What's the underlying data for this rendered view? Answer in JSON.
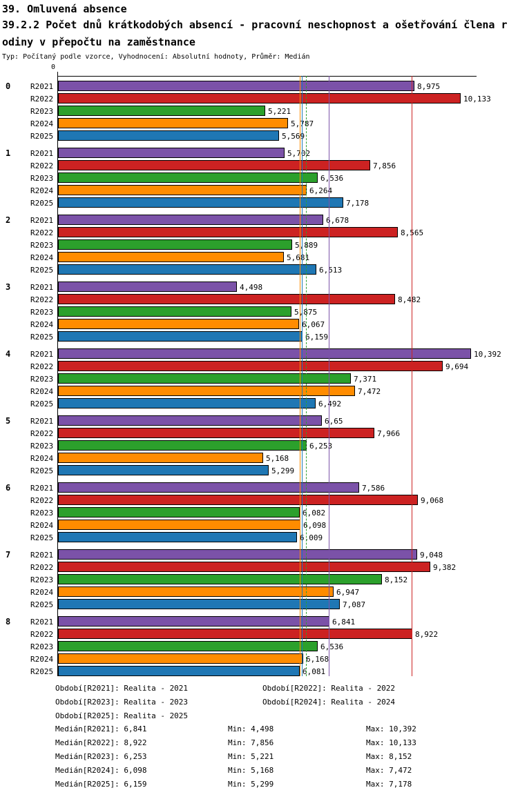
{
  "header": {
    "title": "39. Omluvená absence",
    "subtitle_line1": "39.2.2 Počet dnů krátkodobých absencí - pracovní neschopnost a ošetřování člena r",
    "subtitle_line2": "odiny v přepočtu na zaměstnance",
    "meta": "Typ: Počítaný podle vzorce, Vyhodnocení: Absolutní hodnoty, Průměr: Medián"
  },
  "chart_data": {
    "type": "bar",
    "orientation": "horizontal",
    "x_axis": {
      "zero_label": "0",
      "xlim": [
        0,
        10.55
      ],
      "grid": false
    },
    "categories": [
      "0",
      "1",
      "2",
      "3",
      "4",
      "5",
      "6",
      "7",
      "8"
    ],
    "series": [
      {
        "name": "R2021",
        "color": "#7B52A8",
        "median": 6.841,
        "values": [
          8.975,
          5.702,
          6.678,
          4.498,
          10.392,
          6.65,
          7.586,
          9.048,
          6.841
        ],
        "labels": [
          "8,975",
          "5,702",
          "6,678",
          "4,498",
          "10,392",
          "6,65",
          "7,586",
          "9,048",
          "6,841"
        ]
      },
      {
        "name": "R2022",
        "color": "#CC2222",
        "median": 8.922,
        "values": [
          10.133,
          7.856,
          8.565,
          8.482,
          9.694,
          7.966,
          9.068,
          9.382,
          8.922
        ],
        "labels": [
          "10,133",
          "7,856",
          "8,565",
          "8,482",
          "9,694",
          "7,966",
          "9,068",
          "9,382",
          "8,922"
        ]
      },
      {
        "name": "R2023",
        "color": "#2CA02C",
        "median": 6.253,
        "values": [
          5.221,
          6.536,
          5.889,
          5.875,
          7.371,
          6.253,
          6.082,
          8.152,
          6.536
        ],
        "labels": [
          "5,221",
          "6,536",
          "5,889",
          "5,875",
          "7,371",
          "6,253",
          "6,082",
          "8,152",
          "6,536"
        ]
      },
      {
        "name": "R2024",
        "color": "#FF8C00",
        "median": 6.098,
        "values": [
          5.787,
          6.264,
          5.681,
          6.067,
          7.472,
          5.168,
          6.098,
          6.947,
          6.168
        ],
        "labels": [
          "5,787",
          "6,264",
          "5,681",
          "6,067",
          "7,472",
          "5,168",
          "6,098",
          "6,947",
          "6,168"
        ]
      },
      {
        "name": "R2025",
        "color": "#1F77B4",
        "median": 6.159,
        "values": [
          5.569,
          7.178,
          6.513,
          6.159,
          6.492,
          5.299,
          6.009,
          7.087,
          6.081
        ],
        "labels": [
          "5,569",
          "7,178",
          "6,513",
          "6,159",
          "6,492",
          "5,299",
          "6,009",
          "7,087",
          "6,081"
        ]
      }
    ],
    "median_lines": [
      {
        "series": "R2021",
        "value": 6.841,
        "style": "solid"
      },
      {
        "series": "R2022",
        "value": 8.922,
        "style": "solid"
      },
      {
        "series": "R2023",
        "value": 6.253,
        "style": "dashed"
      },
      {
        "series": "R2024",
        "value": 6.098,
        "style": "solid"
      },
      {
        "series": "R2025",
        "value": 6.159,
        "style": "solid"
      }
    ],
    "legend_position": "bottom"
  },
  "legend": [
    "Období[R2021]: Realita - 2021",
    "Období[R2022]: Realita - 2022",
    "Období[R2023]: Realita - 2023",
    "Období[R2024]: Realita - 2024",
    "Období[R2025]: Realita - 2025"
  ],
  "stats": [
    {
      "median": "Medián[R2021]: 6,841",
      "min": "Min: 4,498",
      "max": "Max: 10,392"
    },
    {
      "median": "Medián[R2022]: 8,922",
      "min": "Min: 7,856",
      "max": "Max: 10,133"
    },
    {
      "median": "Medián[R2023]: 6,253",
      "min": "Min: 5,221",
      "max": "Max: 8,152"
    },
    {
      "median": "Medián[R2024]: 6,098",
      "min": "Min: 5,168",
      "max": "Max: 7,472"
    },
    {
      "median": "Medián[R2025]: 6,159",
      "min": "Min: 5,299",
      "max": "Max: 7,178"
    }
  ]
}
